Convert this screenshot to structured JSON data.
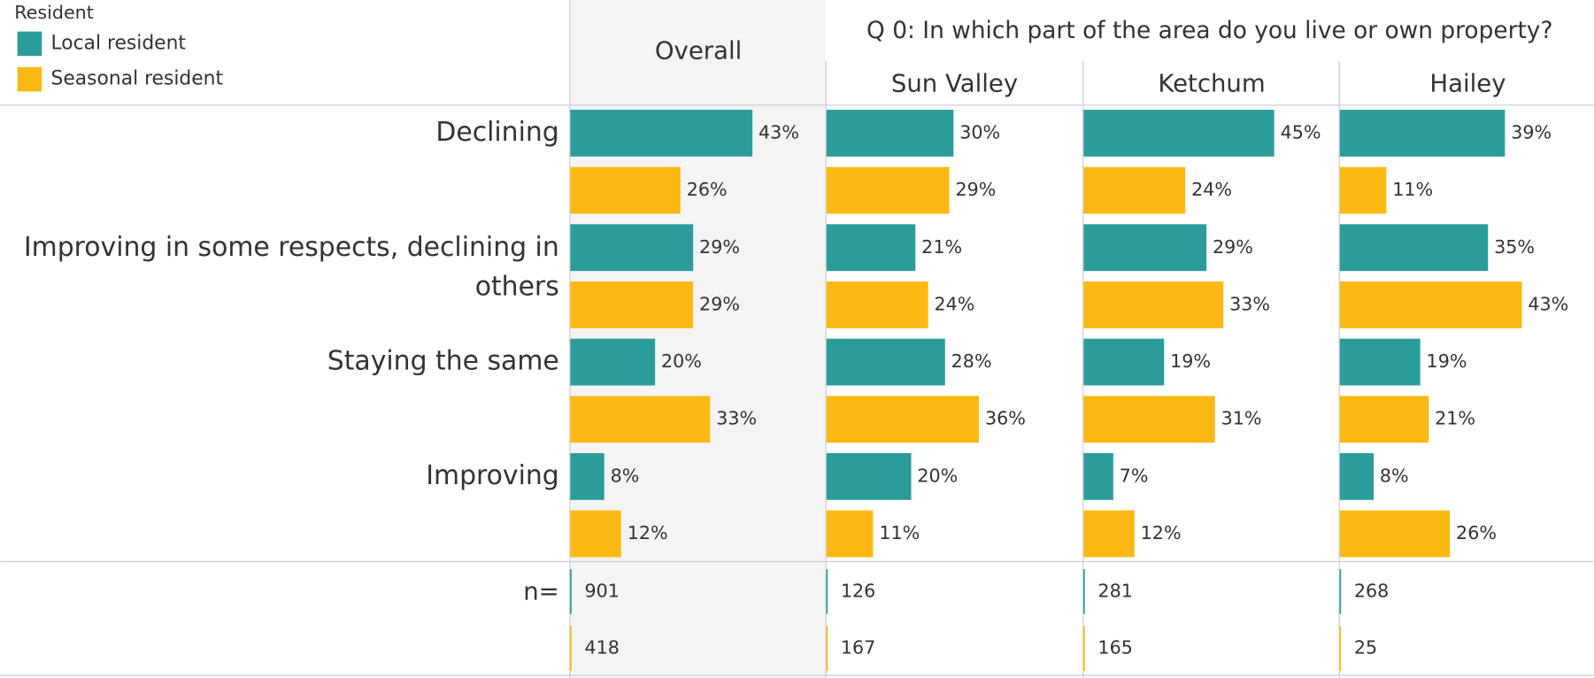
{
  "legend_title": "Resident",
  "column_title": "Q 0: In which part of the area do you live or own property?",
  "n_label": "n=",
  "chart_data": {
    "type": "bar",
    "categories": [
      "Declining",
      "Improving in some respects, declining in others",
      "Staying the same",
      "Improving"
    ],
    "panels": [
      "Overall",
      "Sun Valley",
      "Ketchum",
      "Hailey"
    ],
    "xlim": [
      0,
      60
    ],
    "series": [
      {
        "name": "Local resident",
        "color": "#2a9d9a",
        "values": [
          [
            43,
            29,
            20,
            8
          ],
          [
            30,
            21,
            28,
            20
          ],
          [
            45,
            29,
            19,
            7
          ],
          [
            39,
            35,
            19,
            8
          ]
        ],
        "value_labels": [
          [
            "43%",
            "29%",
            "20%",
            "8%"
          ],
          [
            "30%",
            "21%",
            "28%",
            "20%"
          ],
          [
            "45%",
            "29%",
            "19%",
            "7%"
          ],
          [
            "39%",
            "35%",
            "19%",
            "8%"
          ]
        ],
        "n": [
          901,
          126,
          281,
          268
        ]
      },
      {
        "name": "Seasonal resident",
        "color": "#fdb913",
        "values": [
          [
            26,
            29,
            33,
            12
          ],
          [
            29,
            24,
            36,
            11
          ],
          [
            24,
            33,
            31,
            12
          ],
          [
            11,
            43,
            21,
            26
          ]
        ],
        "value_labels": [
          [
            "26%",
            "29%",
            "33%",
            "12%"
          ],
          [
            "29%",
            "24%",
            "36%",
            "11%"
          ],
          [
            "24%",
            "33%",
            "31%",
            "12%"
          ],
          [
            "11%",
            "43%",
            "21%",
            "26%"
          ]
        ],
        "n": [
          418,
          167,
          165,
          25
        ]
      }
    ]
  }
}
